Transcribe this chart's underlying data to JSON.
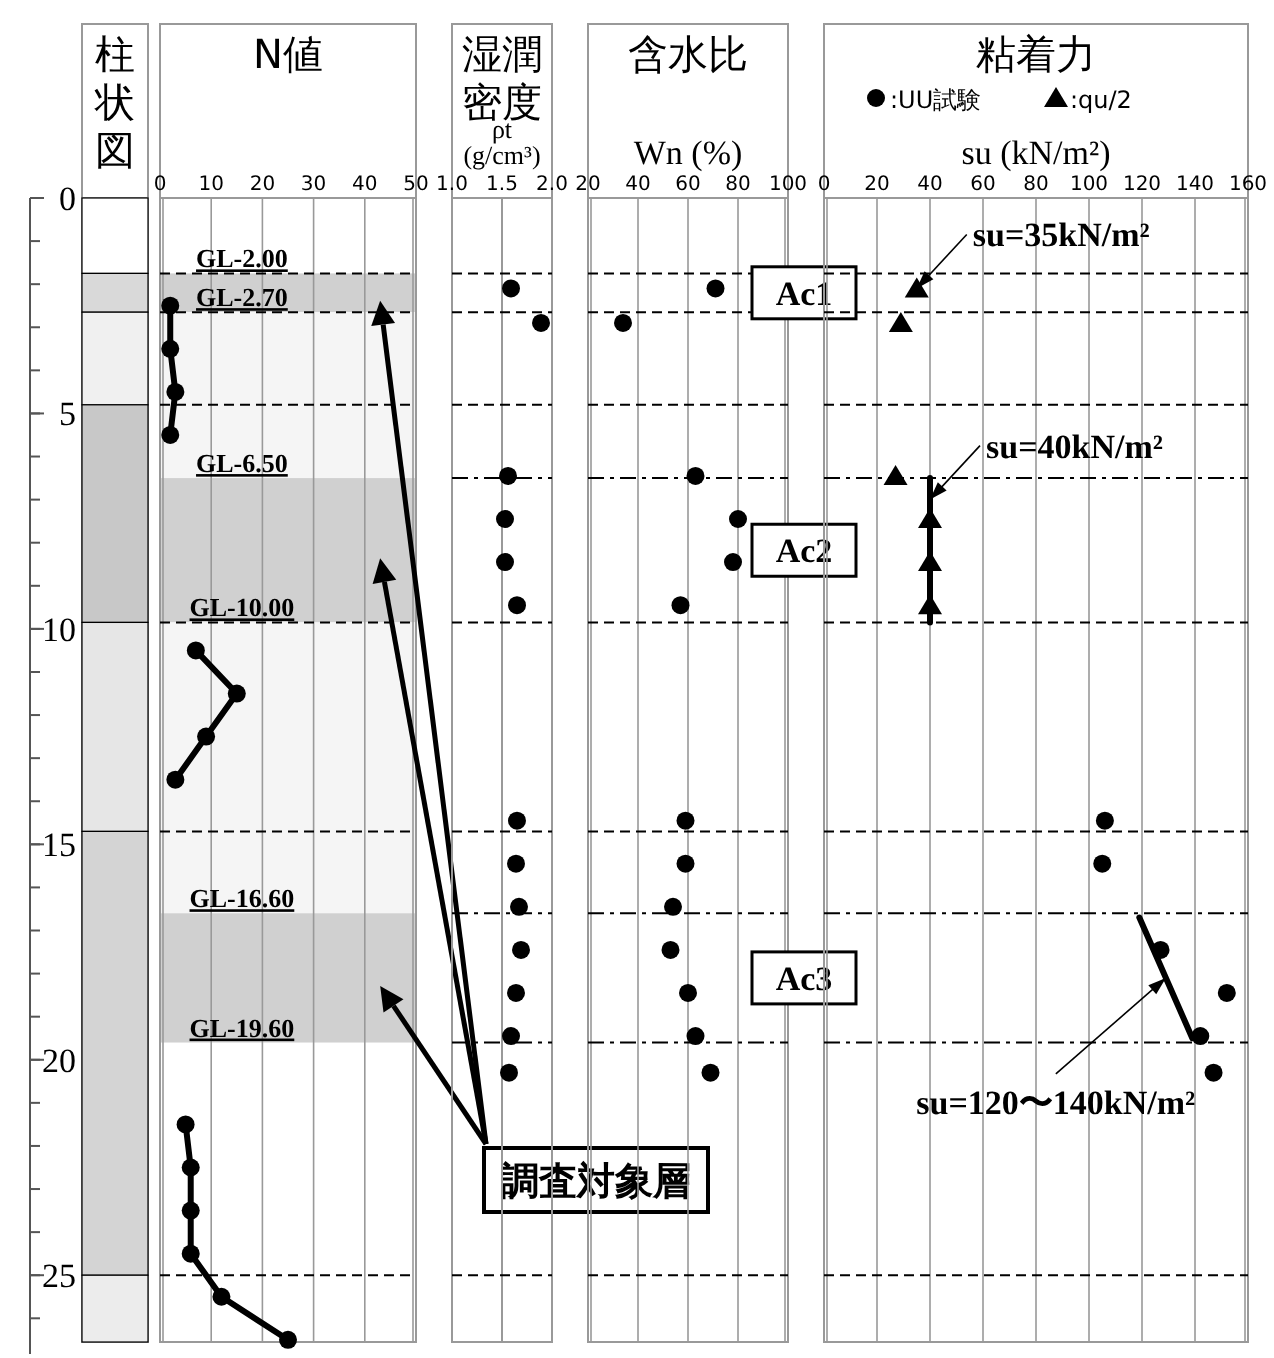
{
  "chart_data": [
    {
      "type": "other",
      "title": "柱状図"
    },
    {
      "type": "line",
      "title": "N値",
      "xlim": [
        0,
        50
      ],
      "xticks": [
        0,
        10,
        20,
        30,
        40,
        50
      ],
      "ylim": [
        26.55,
        0
      ],
      "grid": "x",
      "marker": "circle",
      "yticks": [
        0,
        5,
        10,
        15,
        20,
        25
      ],
      "x": [
        2,
        2,
        3,
        2,
        null,
        7,
        15,
        9,
        3,
        null,
        5,
        6,
        6,
        6,
        12,
        25
      ],
      "series": [
        {
          "color": "#000000",
          "values": [
            2.5,
            3.5,
            4.5,
            5.5,
            null,
            10.5,
            11.5,
            12.5,
            13.5,
            null,
            21.5,
            22.5,
            23.5,
            24.5,
            25.5,
            26.5
          ]
        }
      ],
      "ref_lines": [
        {
          "axis": "y",
          "value": 1.75,
          "line_style": "dashed"
        },
        {
          "axis": "y",
          "value": 2.65,
          "line_style": "dashed"
        },
        {
          "axis": "y",
          "value": 4.8,
          "line_style": "dashed"
        },
        {
          "axis": "y",
          "value": 9.85,
          "line_style": "dashed"
        },
        {
          "axis": "y",
          "value": 14.7,
          "line_style": "dashed"
        },
        {
          "axis": "y",
          "value": 25,
          "line_style": "dashed"
        }
      ],
      "bands": [
        {
          "axis": "y",
          "from": 1.75,
          "to": 2.65,
          "color": "#d0d0d0"
        },
        {
          "axis": "y",
          "from": 2.65,
          "to": 6.5,
          "color": "#f5f5f5"
        },
        {
          "axis": "y",
          "from": 6.5,
          "to": 9.85,
          "color": "#d0d0d0"
        },
        {
          "axis": "y",
          "from": 9.85,
          "to": 16.6,
          "color": "#f5f5f5"
        },
        {
          "axis": "y",
          "from": 16.6,
          "to": 19.6,
          "color": "#d0d0d0"
        }
      ],
      "annotations": [
        {
          "text": "GL-2.00",
          "x": 16,
          "y": 1.75
        },
        {
          "text": "GL-2.70",
          "x": 16,
          "y": 2.65
        },
        {
          "text": "GL-6.50",
          "x": 16,
          "y": 6.5
        },
        {
          "text": "GL-10.00",
          "x": 16,
          "y": 9.85
        },
        {
          "text": "GL-16.60",
          "x": 16,
          "y": 16.6
        },
        {
          "text": "GL-19.60",
          "x": 16,
          "y": 19.6
        },
        "調査対象層"
      ]
    },
    {
      "type": "scatter",
      "title": "湿潤密度",
      "xlabel": "ρt (g/cm³)",
      "xlim": [
        1.0,
        2.0
      ],
      "xticks": [
        {
          "value": 1.0,
          "label": "1.0"
        },
        {
          "value": 1.5,
          "label": "1.5"
        },
        {
          "value": 2.0,
          "label": "2.0"
        }
      ],
      "ylim": [
        26.55,
        0
      ],
      "tick_labels": "x",
      "marker": "circle",
      "x": [
        1.59,
        1.89,
        1.56,
        1.53,
        1.53,
        1.65,
        1.65,
        1.64,
        1.67,
        1.69,
        1.64,
        1.59,
        1.57
      ],
      "series": [
        {
          "color": "#000000",
          "values": [
            2.1,
            2.9,
            6.45,
            7.45,
            8.45,
            9.45,
            14.45,
            15.45,
            16.45,
            17.45,
            18.45,
            19.45,
            20.3
          ]
        }
      ],
      "ref_lines": [
        {
          "axis": "x",
          "value": 1.5,
          "color": "#999999",
          "line_style": "solid"
        },
        {
          "axis": "y",
          "value": 1.75,
          "line_style": "dashed"
        },
        {
          "axis": "y",
          "value": 2.65,
          "line_style": "dashed"
        },
        {
          "axis": "y",
          "value": 4.8,
          "line_style": "dashed"
        },
        {
          "axis": "y",
          "value": 6.5,
          "line_style": "dashdot"
        },
        {
          "axis": "y",
          "value": 9.85,
          "line_style": "dashed"
        },
        {
          "axis": "y",
          "value": 14.7,
          "line_style": "dashed"
        },
        {
          "axis": "y",
          "value": 16.6,
          "line_style": "dashdot"
        },
        {
          "axis": "y",
          "value": 19.6,
          "line_style": "dashdot"
        },
        {
          "axis": "y",
          "value": 25,
          "line_style": "dashed"
        }
      ]
    },
    {
      "type": "scatter",
      "title": "含水比",
      "xlabel": "Wn (%)",
      "xlim": [
        20,
        100
      ],
      "xticks": [
        20,
        40,
        60,
        80,
        100
      ],
      "ylim": [
        26.55,
        0
      ],
      "tick_labels": "x",
      "grid": "x",
      "marker": "circle",
      "x": [
        71,
        34,
        63,
        80,
        78,
        57,
        59,
        59,
        54,
        53,
        60,
        63,
        69
      ],
      "series": [
        {
          "color": "#000000",
          "values": [
            2.1,
            2.9,
            6.45,
            7.45,
            8.45,
            9.45,
            14.45,
            15.45,
            16.45,
            17.45,
            18.45,
            19.45,
            20.3
          ]
        }
      ],
      "ref_lines": [
        {
          "axis": "y",
          "value": 1.75,
          "line_style": "dashed"
        },
        {
          "axis": "y",
          "value": 2.65,
          "line_style": "dashed"
        },
        {
          "axis": "y",
          "value": 4.8,
          "line_style": "dashed"
        },
        {
          "axis": "y",
          "value": 6.5,
          "line_style": "dashdot"
        },
        {
          "axis": "y",
          "value": 9.85,
          "line_style": "dashed"
        },
        {
          "axis": "y",
          "value": 14.7,
          "line_style": "dashed"
        },
        {
          "axis": "y",
          "value": 16.6,
          "line_style": "dashdot"
        },
        {
          "axis": "y",
          "value": 19.6,
          "line_style": "dashdot"
        },
        {
          "axis": "y",
          "value": 25,
          "line_style": "dashed"
        }
      ],
      "annotations": [
        "Ac1",
        "Ac2",
        "Ac3"
      ]
    },
    {
      "type": "scatter",
      "title": "粘着力",
      "xlabel": "su (kN/m²)",
      "xlim": [
        0,
        160
      ],
      "xticks": [
        0,
        20,
        40,
        60,
        80,
        100,
        120,
        140,
        160
      ],
      "ylim": [
        26.55,
        0
      ],
      "tick_labels": "x",
      "grid": "x",
      "legend": "top",
      "series": [
        {
          "name": ":UU試験",
          "color": "#000000",
          "marker": "circle",
          "x": [
            106,
            105,
            127,
            152,
            142,
            147
          ],
          "values": [
            14.45,
            15.45,
            17.45,
            18.45,
            19.45,
            20.3
          ]
        },
        {
          "name": ":qu/2",
          "color": "#000000",
          "marker": "triangle",
          "x": [
            35,
            29,
            27,
            40,
            40,
            40
          ],
          "values": [
            2.1,
            2.9,
            6.45,
            7.45,
            8.45,
            9.45
          ]
        },
        {
          "type": "line",
          "color": "#000000",
          "marker": "none",
          "x": [
            40,
            40
          ],
          "values": [
            6.5,
            9.85
          ]
        },
        {
          "type": "line",
          "color": "#000000",
          "marker": "none",
          "x": [
            119,
            139
          ],
          "values": [
            16.7,
            19.5
          ]
        }
      ],
      "ref_lines": [
        {
          "axis": "y",
          "value": 1.75,
          "line_style": "dashed"
        },
        {
          "axis": "y",
          "value": 2.65,
          "line_style": "dashed"
        },
        {
          "axis": "y",
          "value": 4.8,
          "line_style": "dashed"
        },
        {
          "axis": "y",
          "value": 6.5,
          "line_style": "dashdot"
        },
        {
          "axis": "y",
          "value": 9.85,
          "line_style": "dashed"
        },
        {
          "axis": "y",
          "value": 14.7,
          "line_style": "dashed"
        },
        {
          "axis": "y",
          "value": 16.6,
          "line_style": "dashdot"
        },
        {
          "axis": "y",
          "value": 19.6,
          "line_style": "dashdot"
        },
        {
          "axis": "y",
          "value": 25,
          "line_style": "dashed"
        }
      ],
      "annotations": [
        {
          "text": "su=35kN/m²",
          "x": 35,
          "y": 2.1
        },
        {
          "text": "su=40kN/m²",
          "x": 40,
          "y": 7.0
        },
        {
          "text": "su=120〜140kN/m²",
          "x": 129,
          "y": 18.1
        }
      ]
    }
  ]
}
